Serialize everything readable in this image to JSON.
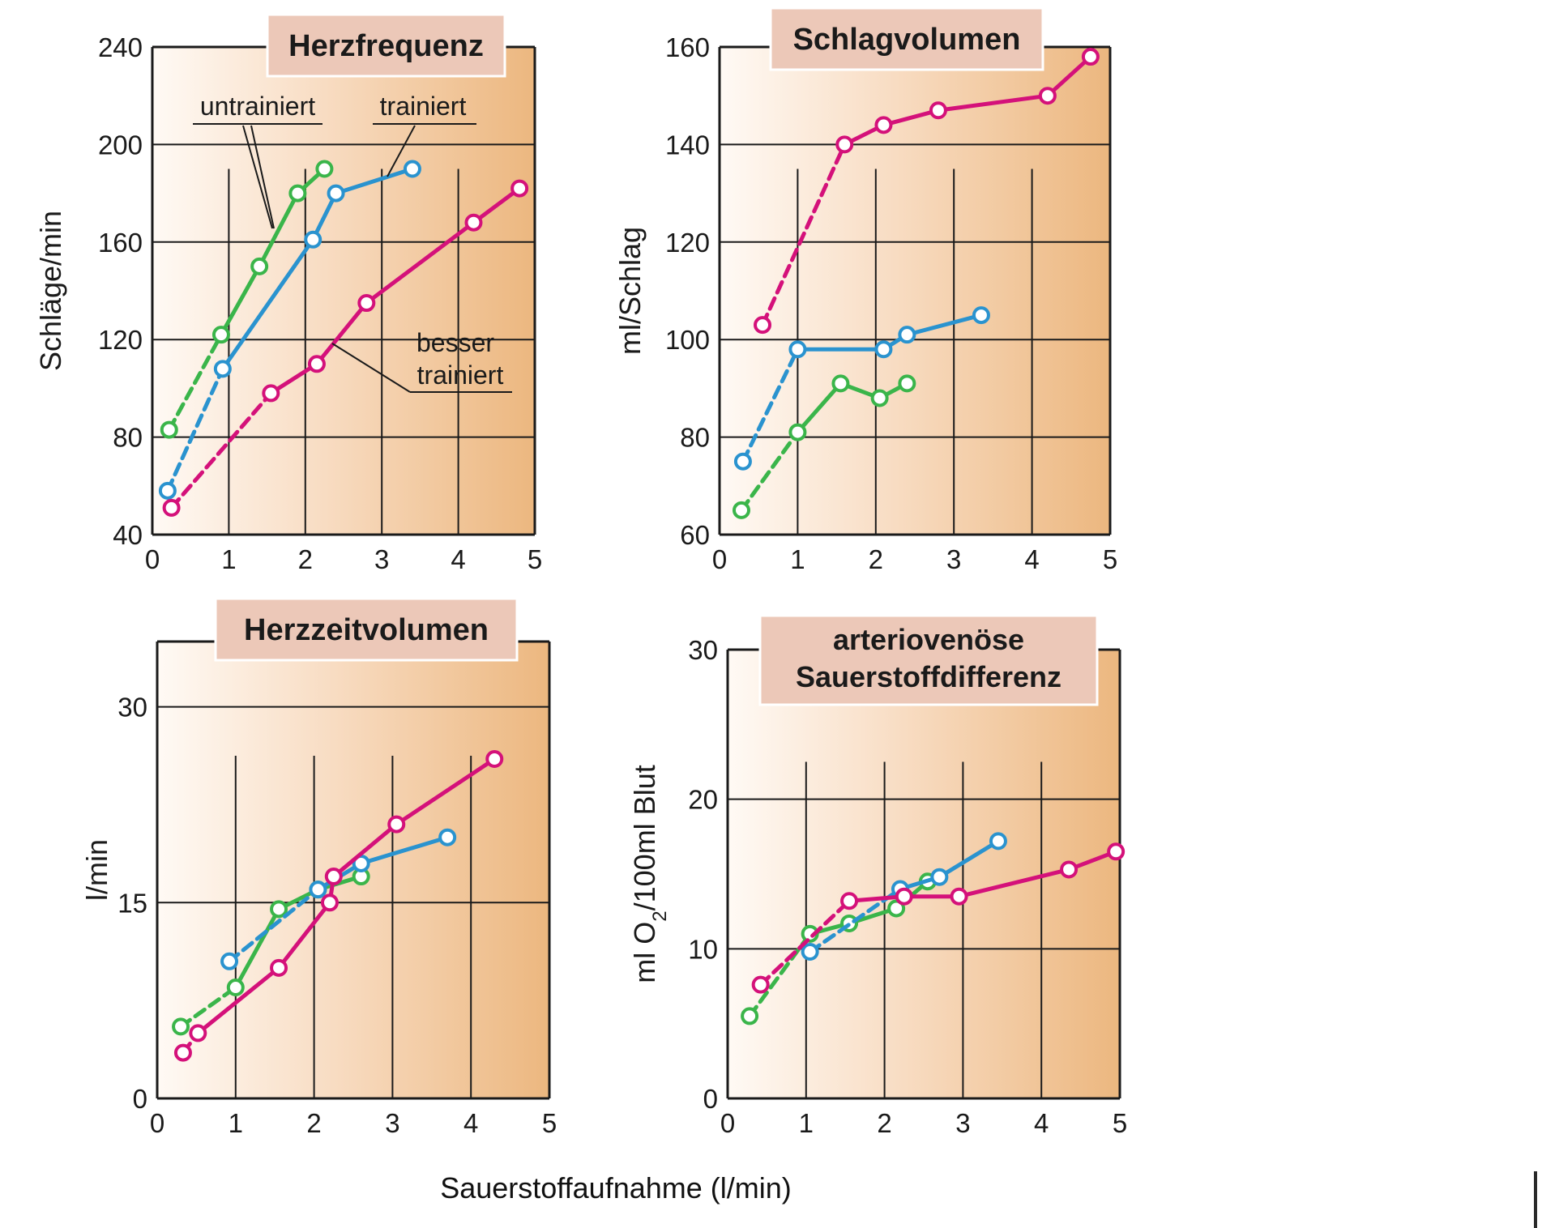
{
  "figure": {
    "x_label": "Sauerstoffaufnahme (l/min)"
  },
  "series_styles": [
    {
      "key": "untrained",
      "color": "#3ab54a"
    },
    {
      "key": "trained",
      "color": "#2a93cf"
    },
    {
      "key": "better_trained",
      "color": "#d4117a"
    }
  ],
  "chart_data": [
    {
      "id": "hf",
      "type": "line",
      "title": "Herzfrequenz",
      "xlabel": "",
      "ylabel": "Schläge/min",
      "xlim": [
        0,
        5
      ],
      "ylim": [
        40,
        240
      ],
      "xticks": [
        "0",
        "1",
        "2",
        "3",
        "4",
        "5"
      ],
      "yticks": [
        "40",
        "80",
        "120",
        "160",
        "200",
        "240"
      ],
      "annotations": [
        {
          "text": "untrainiert"
        },
        {
          "text": "trainiert"
        },
        {
          "text": "besser"
        },
        {
          "text": "trainiert"
        }
      ],
      "series": [
        {
          "key": "untrained",
          "x": [
            0.22,
            0.9,
            1.4,
            1.9,
            2.25
          ],
          "y": [
            83,
            122,
            150,
            180,
            190
          ]
        },
        {
          "key": "trained",
          "x": [
            0.2,
            0.92,
            2.1,
            2.4,
            3.4
          ],
          "y": [
            58,
            108,
            161,
            180,
            190
          ]
        },
        {
          "key": "better_trained",
          "x": [
            0.25,
            1.55,
            2.15,
            2.8,
            4.2,
            4.8
          ],
          "y": [
            51,
            98,
            110,
            135,
            168,
            182
          ]
        }
      ]
    },
    {
      "id": "sv",
      "type": "line",
      "title": "Schlagvolumen",
      "xlabel": "",
      "ylabel": "ml/Schlag",
      "xlim": [
        0,
        5
      ],
      "ylim": [
        60,
        160
      ],
      "xticks": [
        "0",
        "1",
        "2",
        "3",
        "4",
        "5"
      ],
      "yticks": [
        "60",
        "80",
        "100",
        "120",
        "140",
        "160"
      ],
      "series": [
        {
          "key": "untrained",
          "x": [
            0.28,
            1.0,
            1.55,
            2.05,
            2.4
          ],
          "y": [
            65,
            81,
            91,
            88,
            91
          ]
        },
        {
          "key": "trained",
          "x": [
            0.3,
            1.0,
            2.1,
            2.4,
            3.35
          ],
          "y": [
            75,
            98,
            98,
            101,
            105
          ]
        },
        {
          "key": "better_trained",
          "x": [
            0.55,
            1.6,
            2.1,
            2.8,
            4.2,
            4.75
          ],
          "y": [
            103,
            140,
            144,
            147,
            150,
            158
          ]
        }
      ]
    },
    {
      "id": "hzv",
      "type": "line",
      "title": "Herzzeitvolumen",
      "xlabel": "",
      "ylabel": "l/min",
      "xlim": [
        0,
        5
      ],
      "ylim": [
        0,
        35
      ],
      "xticks": [
        "0",
        "1",
        "2",
        "3",
        "4",
        "5"
      ],
      "yticks": [
        "0",
        "15",
        "30"
      ],
      "series": [
        {
          "key": "untrained",
          "x": [
            0.3,
            1.0,
            1.55,
            2.05,
            2.6
          ],
          "y": [
            5.5,
            8.5,
            14.5,
            16,
            17
          ]
        },
        {
          "key": "trained",
          "x": [
            0.92,
            2.05,
            2.6,
            3.7
          ],
          "y": [
            10.5,
            16,
            18,
            20
          ]
        },
        {
          "key": "better_trained",
          "x": [
            0.33,
            0.52,
            1.55,
            2.2,
            2.25,
            3.05,
            4.3
          ],
          "y": [
            3.5,
            5,
            10,
            15,
            17,
            21,
            26
          ]
        }
      ]
    },
    {
      "id": "avd",
      "type": "line",
      "title": "arteriovenöse Sauerstoffdifferenz",
      "title_lines": [
        "arteriovenöse",
        "Sauerstoffdifferenz"
      ],
      "xlabel": "",
      "ylabel": "ml O2/100ml Blut",
      "ylabel_main": "ml O",
      "ylabel_sub": "2",
      "ylabel_rest": "/100ml Blut",
      "xlim": [
        0,
        5
      ],
      "ylim": [
        0,
        30
      ],
      "xticks": [
        "0",
        "1",
        "2",
        "3",
        "4",
        "5"
      ],
      "yticks": [
        "0",
        "10",
        "20",
        "30"
      ],
      "series": [
        {
          "key": "untrained",
          "x": [
            0.28,
            1.05,
            1.55,
            2.15,
            2.55
          ],
          "y": [
            5.5,
            11,
            11.7,
            12.7,
            14.5
          ]
        },
        {
          "key": "trained",
          "x": [
            1.05,
            2.2,
            2.7,
            3.45
          ],
          "y": [
            9.8,
            14,
            14.8,
            17.2
          ]
        },
        {
          "key": "better_trained",
          "x": [
            0.42,
            1.55,
            2.25,
            2.95,
            4.35,
            4.95
          ],
          "y": [
            7.6,
            13.2,
            13.5,
            13.5,
            15.3,
            16.5
          ]
        }
      ]
    }
  ]
}
